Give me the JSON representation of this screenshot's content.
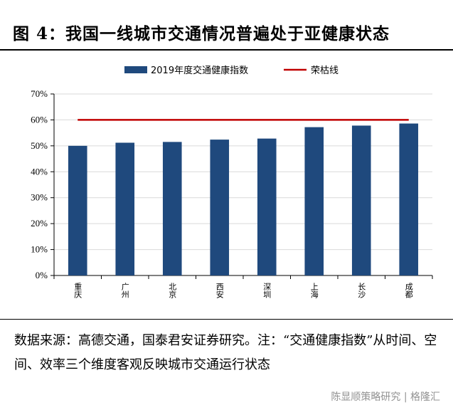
{
  "figure_title": "图 4：我国一线城市交通情况普遍处于亚健康状态",
  "source_note": "数据来源：高德交通，国泰君安证券研究。注：“交通健康指数”从时间、空间、效率三个维度客观反映城市交通运行状态",
  "watermark": "陈显顺策略研究 | 格隆汇",
  "chart_data": {
    "type": "bar",
    "categories": [
      "重庆",
      "广州",
      "北京",
      "西安",
      "深圳",
      "上海",
      "长沙",
      "成都"
    ],
    "series": [
      {
        "name": "2019年度交通健康指数",
        "values": [
          50,
          51.2,
          51.5,
          52.4,
          52.8,
          57.2,
          57.8,
          58.6
        ],
        "color": "#1f497d"
      }
    ],
    "reference_line": {
      "name": "荣枯线",
      "value": 60,
      "color": "#c00000"
    },
    "ylim": [
      0,
      70
    ],
    "yticks": [
      "0%",
      "10%",
      "20%",
      "30%",
      "40%",
      "50%",
      "60%",
      "70%"
    ],
    "ytick_values": [
      0,
      10,
      20,
      30,
      40,
      50,
      60,
      70
    ],
    "xlabel": "",
    "ylabel": "",
    "legend_position": "top",
    "grid": true
  }
}
